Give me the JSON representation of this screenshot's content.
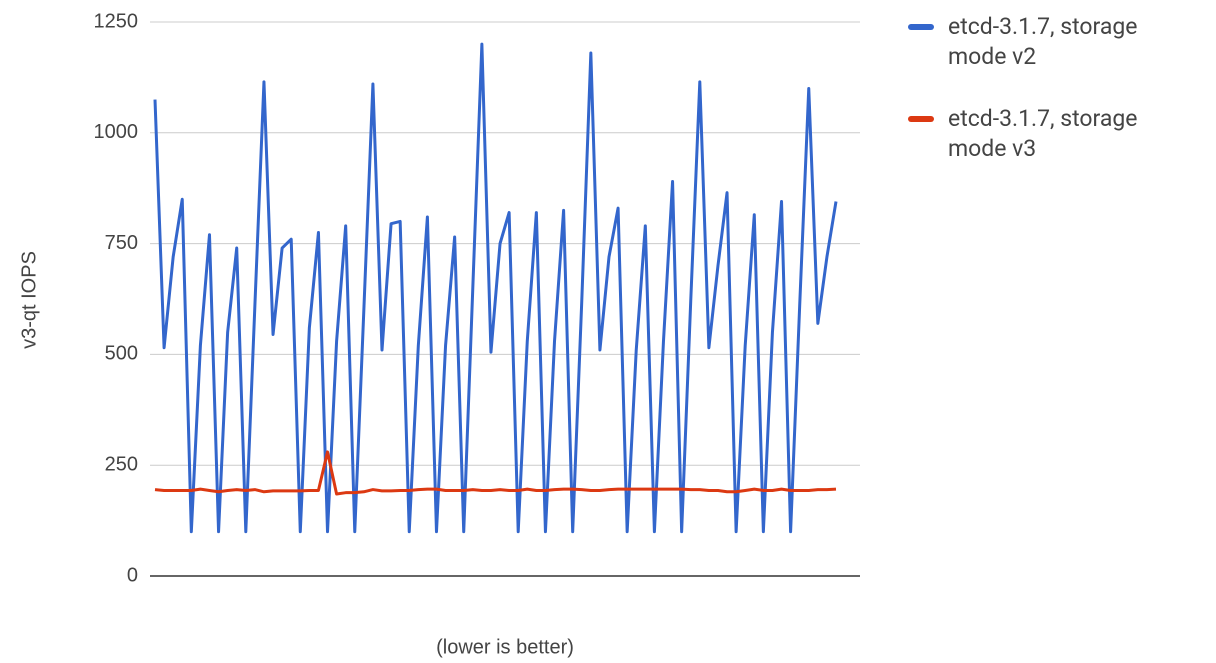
{
  "chart_data": {
    "type": "line",
    "y_label": "v3-qt IOPS",
    "x_label": "(lower is better)",
    "categories": [
      null,
      null,
      null,
      null,
      null,
      null,
      null,
      null,
      null,
      null,
      null,
      null,
      null,
      null,
      null,
      null,
      null,
      null,
      null,
      null,
      null,
      null,
      null,
      null,
      null,
      null,
      null,
      null,
      null,
      null,
      null,
      null,
      null,
      null,
      null,
      null,
      null,
      null,
      null,
      null,
      null,
      null,
      null,
      null,
      null,
      null,
      null,
      null,
      null,
      null,
      null,
      null,
      null,
      null,
      null,
      null,
      null,
      null,
      null,
      null,
      null,
      null,
      null,
      null,
      null,
      null,
      null,
      null,
      null,
      null,
      null,
      null,
      null,
      null,
      null,
      null
    ],
    "series": [
      {
        "name": "etcd-3.1.7, storage mode v2",
        "color": "#3366cc",
        "values": [
          1075,
          515,
          720,
          850,
          100,
          520,
          770,
          100,
          550,
          740,
          100,
          610,
          1115,
          545,
          740,
          760,
          100,
          560,
          775,
          100,
          530,
          790,
          100,
          600,
          1110,
          510,
          795,
          800,
          100,
          520,
          810,
          100,
          520,
          765,
          100,
          650,
          1200,
          505,
          750,
          820,
          100,
          530,
          820,
          100,
          530,
          825,
          100,
          620,
          1180,
          510,
          720,
          830,
          100,
          510,
          790,
          100,
          530,
          890,
          100,
          620,
          1115,
          515,
          700,
          865,
          100,
          520,
          815,
          100,
          550,
          845,
          100,
          610,
          1100,
          570,
          720,
          845
        ]
      },
      {
        "name": "etcd-3.1.7, storage mode v3",
        "color": "#dc3912",
        "values": [
          195,
          193,
          193,
          193,
          193,
          196,
          193,
          190,
          193,
          195,
          193,
          195,
          190,
          192,
          192,
          192,
          192,
          193,
          193,
          280,
          185,
          188,
          188,
          190,
          195,
          192,
          192,
          193,
          193,
          195,
          196,
          196,
          193,
          193,
          193,
          195,
          193,
          193,
          195,
          193,
          193,
          196,
          193,
          193,
          195,
          196,
          196,
          195,
          193,
          193,
          195,
          196,
          196,
          196,
          196,
          196,
          196,
          196,
          196,
          195,
          195,
          193,
          193,
          190,
          190,
          193,
          196,
          193,
          193,
          196,
          193,
          193,
          193,
          195,
          195,
          196
        ]
      }
    ],
    "ylim": [
      0,
      1250
    ],
    "yticks": [
      0,
      250,
      500,
      750,
      1000,
      1250
    ],
    "grid": true,
    "legend": "right"
  }
}
